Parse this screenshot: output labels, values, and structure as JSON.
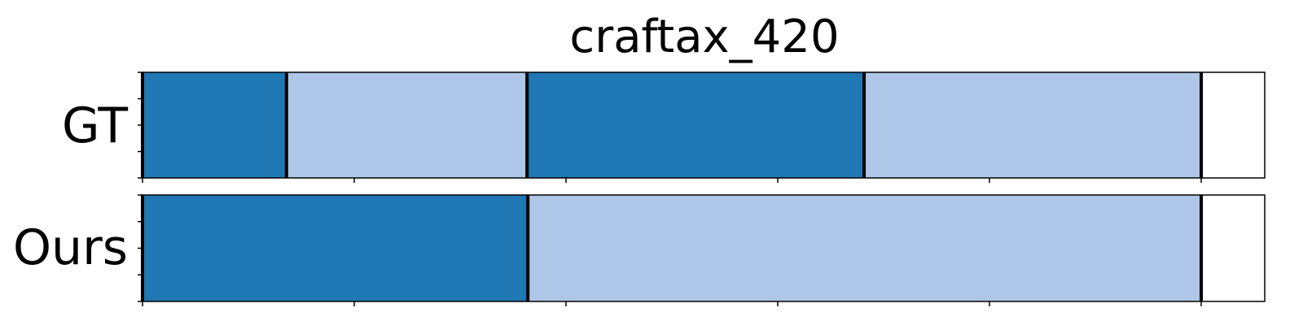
{
  "chart_data": {
    "type": "bar",
    "title": "craftax_420",
    "xlim": [
      0,
      1325
    ],
    "x_ticks": [
      0,
      250,
      500,
      750,
      1000,
      1250
    ],
    "rows": [
      {
        "label": "GT",
        "segments": [
          {
            "start": 0,
            "end": 170,
            "color": "#1f77b4"
          },
          {
            "start": 170,
            "end": 454,
            "color": "#aec7e8"
          },
          {
            "start": 454,
            "end": 852,
            "color": "#1f77b4"
          },
          {
            "start": 852,
            "end": 1250,
            "color": "#aec7e8"
          }
        ],
        "boundaries": [
          0,
          170,
          454,
          852,
          1250
        ]
      },
      {
        "label": "Ours",
        "segments": [
          {
            "start": 0,
            "end": 455,
            "color": "#1f77b4"
          },
          {
            "start": 455,
            "end": 1250,
            "color": "#aec7e8"
          }
        ],
        "boundaries": [
          0,
          455,
          1250
        ]
      }
    ],
    "grid": false,
    "legend": "none"
  }
}
